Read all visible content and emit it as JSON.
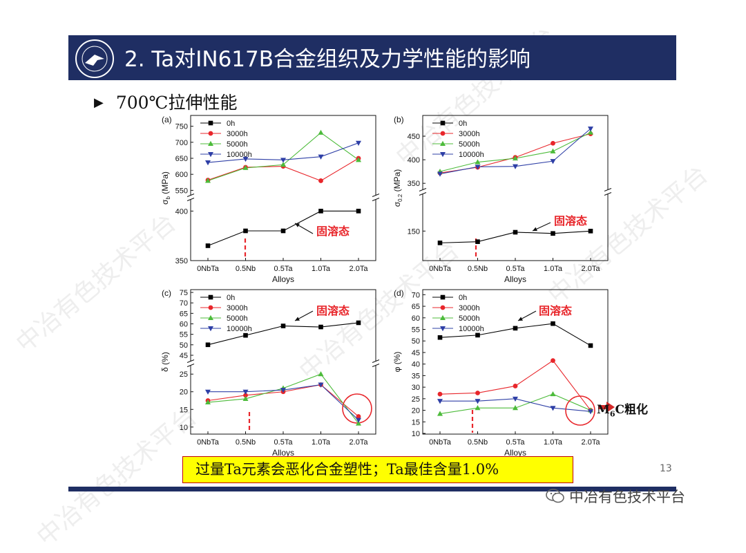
{
  "slide": {
    "title": "2. Ta对IN617B合金组织及力学性能的影响",
    "subtitle": "700℃拉伸性能",
    "conclusion": "过量Ta元素会恶化合金塑性；Ta最佳含量1.0%",
    "page_number": "13",
    "footer_brand": "中冶有色技术平台",
    "m6c_prefix": "M",
    "m6c_sub": "6",
    "m6c_suffix": "C粗化",
    "watermark": "中冶有色技术平台",
    "colors": {
      "header": "#1f2e63",
      "highlight": "#ffff00",
      "arrow": "#d42a2a"
    }
  },
  "chart_data": [
    {
      "type": "line",
      "panel": "(a)",
      "categories": [
        "0NbTa",
        "0.5Nb",
        "0.5Ta",
        "1.0Ta",
        "2.0Ta"
      ],
      "xlabel": "Alloys",
      "ylabel": "σb (MPa)",
      "ylabel_main": "σ",
      "ylabel_sub": "b",
      "ylabel_unit": " (MPa)",
      "broken_axis": true,
      "upper": {
        "ylim": [
          540,
          760
        ],
        "ticks": [
          550,
          600,
          650,
          700,
          750
        ]
      },
      "lower": {
        "ylim": [
          350,
          410
        ],
        "ticks": [
          350,
          400
        ]
      },
      "series": [
        {
          "name": "0h",
          "color": "#000000",
          "marker": "square",
          "segment": "lower",
          "values": [
            365,
            380,
            380,
            400,
            400
          ]
        },
        {
          "name": "3000h",
          "color": "#e8262b",
          "marker": "circle",
          "segment": "upper",
          "values": [
            582,
            622,
            625,
            580,
            650
          ]
        },
        {
          "name": "5000h",
          "color": "#4cbb3a",
          "marker": "triangle-up",
          "segment": "upper",
          "values": [
            580,
            620,
            630,
            730,
            645
          ]
        },
        {
          "name": "10000h",
          "color": "#2e3fa6",
          "marker": "triangle-down",
          "segment": "upper",
          "values": [
            637,
            648,
            645,
            655,
            698
          ]
        }
      ],
      "annotation": "固溶态"
    },
    {
      "type": "line",
      "panel": "(b)",
      "categories": [
        "0NbTa",
        "0.5Nb",
        "0.5Ta",
        "1.0Ta",
        "2.0Ta"
      ],
      "xlabel": "Alloys",
      "ylabel": "σ0.2 (MPa)",
      "ylabel_main": "σ",
      "ylabel_sub": "0.2",
      "ylabel_unit": " (MPa)",
      "broken_axis": true,
      "upper": {
        "ylim": [
          340,
          475
        ],
        "ticks": [
          350,
          400,
          450
        ]
      },
      "lower": {
        "ylim": [
          125,
          180
        ],
        "ticks": [
          150
        ]
      },
      "series": [
        {
          "name": "0h",
          "color": "#000000",
          "marker": "square",
          "segment": "lower",
          "values": [
            140,
            141,
            149,
            148,
            150
          ]
        },
        {
          "name": "3000h",
          "color": "#e8262b",
          "marker": "circle",
          "segment": "upper",
          "values": [
            372,
            384,
            405,
            435,
            455
          ]
        },
        {
          "name": "5000h",
          "color": "#4cbb3a",
          "marker": "triangle-up",
          "segment": "upper",
          "values": [
            375,
            395,
            403,
            418,
            458
          ]
        },
        {
          "name": "10000h",
          "color": "#2e3fa6",
          "marker": "triangle-down",
          "segment": "upper",
          "values": [
            370,
            385,
            386,
            397,
            466
          ]
        }
      ],
      "annotation": "固溶态"
    },
    {
      "type": "line",
      "panel": "(c)",
      "categories": [
        "0NbTa",
        "0.5Nb",
        "0.5Ta",
        "1.0Ta",
        "2.0Ta"
      ],
      "xlabel": "Alloys",
      "ylabel": "δ (%)",
      "ylabel_main": "δ",
      "ylabel_sub": "",
      "ylabel_unit": " (%)",
      "broken_axis": true,
      "upper": {
        "ylim": [
          43,
          76
        ],
        "ticks": [
          45,
          50,
          55,
          60,
          65,
          70,
          75
        ]
      },
      "lower": {
        "ylim": [
          8,
          27
        ],
        "ticks": [
          10,
          15,
          20,
          25
        ]
      },
      "series": [
        {
          "name": "0h",
          "color": "#000000",
          "marker": "square",
          "segment": "upper",
          "values": [
            50,
            54.5,
            59,
            58.5,
            60.5
          ]
        },
        {
          "name": "3000h",
          "color": "#e8262b",
          "marker": "circle",
          "segment": "lower",
          "values": [
            17.5,
            19,
            20,
            22,
            13
          ]
        },
        {
          "name": "5000h",
          "color": "#4cbb3a",
          "marker": "triangle-up",
          "segment": "lower",
          "values": [
            17,
            18,
            21,
            25,
            11
          ]
        },
        {
          "name": "10000h",
          "color": "#2e3fa6",
          "marker": "triangle-down",
          "segment": "lower",
          "values": [
            20,
            20,
            20.5,
            22,
            12
          ]
        }
      ],
      "annotation": "固溶态"
    },
    {
      "type": "line",
      "panel": "(d)",
      "categories": [
        "0NbTa",
        "0.5Nb",
        "0.5Ta",
        "1.0Ta",
        "2.0Ta"
      ],
      "xlabel": "Alloys",
      "ylabel": "φ (%)",
      "ylabel_main": "φ",
      "ylabel_sub": "",
      "ylabel_unit": " (%)",
      "broken_axis": false,
      "upper": {
        "ylim": [
          10,
          71
        ],
        "ticks": [
          10,
          15,
          20,
          25,
          30,
          35,
          40,
          45,
          50,
          55,
          60,
          65,
          70
        ]
      },
      "series": [
        {
          "name": "0h",
          "color": "#000000",
          "marker": "square",
          "values": [
            51.5,
            52.5,
            55.5,
            57.5,
            48
          ]
        },
        {
          "name": "3000h",
          "color": "#e8262b",
          "marker": "circle",
          "values": [
            27,
            27.5,
            30.5,
            41.5,
            20
          ]
        },
        {
          "name": "5000h",
          "color": "#4cbb3a",
          "marker": "triangle-up",
          "values": [
            18.5,
            21,
            21,
            27,
            20
          ]
        },
        {
          "name": "10000h",
          "color": "#2e3fa6",
          "marker": "triangle-down",
          "values": [
            24,
            24,
            25,
            21,
            19.5
          ]
        }
      ],
      "annotation": "固溶态"
    }
  ]
}
